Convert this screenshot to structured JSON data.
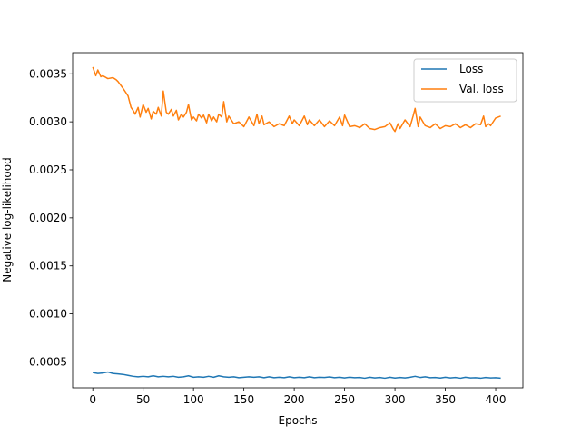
{
  "chart_data": {
    "type": "line",
    "title": "",
    "xlabel": "Epochs",
    "ylabel": "Negative log-likelihood",
    "xlim": [
      -20,
      427
    ],
    "ylim": [
      0.00023,
      0.00372
    ],
    "xticks": [
      0,
      50,
      100,
      150,
      200,
      250,
      300,
      350,
      400
    ],
    "yticks": [
      0.0005,
      0.001,
      0.0015,
      0.002,
      0.0025,
      0.003,
      0.0035
    ],
    "ytick_labels": [
      "0.0005",
      "0.0010",
      "0.0015",
      "0.0020",
      "0.0025",
      "0.0030",
      "0.0035"
    ],
    "grid": false,
    "legend_position": "upper right",
    "series": [
      {
        "name": "Loss",
        "color": "#1f77b4",
        "x": [
          0,
          5,
          10,
          15,
          20,
          25,
          30,
          35,
          40,
          45,
          50,
          55,
          60,
          65,
          70,
          75,
          80,
          85,
          90,
          95,
          100,
          105,
          110,
          115,
          120,
          125,
          130,
          135,
          140,
          145,
          150,
          155,
          160,
          165,
          170,
          175,
          180,
          185,
          190,
          195,
          200,
          205,
          210,
          215,
          220,
          225,
          230,
          235,
          240,
          245,
          250,
          255,
          260,
          265,
          270,
          275,
          280,
          285,
          290,
          295,
          300,
          305,
          310,
          315,
          320,
          325,
          330,
          335,
          340,
          345,
          350,
          355,
          360,
          365,
          370,
          375,
          380,
          385,
          390,
          395,
          400,
          405
        ],
        "y": [
          0.00039,
          0.00038,
          0.000385,
          0.000395,
          0.00038,
          0.000375,
          0.00037,
          0.00036,
          0.00035,
          0.000345,
          0.00035,
          0.000345,
          0.000355,
          0.000345,
          0.00035,
          0.000345,
          0.00035,
          0.00034,
          0.000345,
          0.000355,
          0.00034,
          0.000345,
          0.00034,
          0.00035,
          0.00034,
          0.000355,
          0.000345,
          0.00034,
          0.000345,
          0.000335,
          0.00034,
          0.000345,
          0.00034,
          0.000345,
          0.000335,
          0.000345,
          0.000335,
          0.00034,
          0.000335,
          0.000345,
          0.000335,
          0.00034,
          0.000335,
          0.000345,
          0.000335,
          0.00034,
          0.000338,
          0.000343,
          0.000335,
          0.00034,
          0.000333,
          0.00034,
          0.000335,
          0.000338,
          0.00033,
          0.00034,
          0.000333,
          0.000338,
          0.00033,
          0.00034,
          0.000332,
          0.000338,
          0.000333,
          0.00034,
          0.00035,
          0.000338,
          0.000345,
          0.000335,
          0.000338,
          0.000332,
          0.00034,
          0.000333,
          0.000338,
          0.00033,
          0.00034,
          0.000333,
          0.000335,
          0.00033,
          0.000338,
          0.000333,
          0.000335,
          0.00033
        ]
      },
      {
        "name": "Val. loss",
        "color": "#ff7f0e",
        "x": [
          0,
          3,
          5,
          8,
          10,
          15,
          20,
          23,
          25,
          30,
          35,
          38,
          40,
          42,
          45,
          47,
          50,
          53,
          55,
          58,
          60,
          63,
          65,
          68,
          70,
          73,
          75,
          78,
          80,
          83,
          85,
          88,
          90,
          93,
          95,
          98,
          100,
          103,
          105,
          108,
          110,
          113,
          115,
          118,
          120,
          123,
          125,
          128,
          130,
          133,
          135,
          140,
          145,
          150,
          155,
          160,
          163,
          165,
          168,
          170,
          175,
          180,
          185,
          190,
          195,
          198,
          200,
          205,
          210,
          213,
          215,
          220,
          225,
          230,
          235,
          240,
          245,
          248,
          250,
          255,
          260,
          265,
          270,
          275,
          280,
          285,
          290,
          295,
          298,
          300,
          303,
          305,
          310,
          315,
          318,
          320,
          323,
          325,
          330,
          335,
          340,
          345,
          350,
          355,
          360,
          365,
          370,
          375,
          380,
          385,
          388,
          390,
          393,
          395,
          400,
          405
        ],
        "y": [
          0.00357,
          0.00348,
          0.00354,
          0.00347,
          0.00348,
          0.00345,
          0.00346,
          0.00344,
          0.00342,
          0.00335,
          0.00327,
          0.00315,
          0.00312,
          0.00308,
          0.00315,
          0.00305,
          0.00318,
          0.0031,
          0.00314,
          0.00303,
          0.00311,
          0.00308,
          0.00315,
          0.00306,
          0.00332,
          0.0031,
          0.00308,
          0.00313,
          0.00306,
          0.00312,
          0.00302,
          0.00308,
          0.00305,
          0.0031,
          0.00318,
          0.00302,
          0.00305,
          0.00301,
          0.00308,
          0.00304,
          0.00307,
          0.00299,
          0.00308,
          0.00301,
          0.00305,
          0.003,
          0.00308,
          0.00305,
          0.00321,
          0.003,
          0.00306,
          0.00298,
          0.003,
          0.00295,
          0.00305,
          0.00296,
          0.00308,
          0.00298,
          0.00306,
          0.00297,
          0.003,
          0.00295,
          0.00298,
          0.00296,
          0.00306,
          0.00298,
          0.00302,
          0.00296,
          0.00306,
          0.00297,
          0.00302,
          0.00296,
          0.00302,
          0.00295,
          0.00301,
          0.00296,
          0.00305,
          0.00296,
          0.00307,
          0.00295,
          0.00296,
          0.00294,
          0.00298,
          0.00293,
          0.00292,
          0.00294,
          0.00295,
          0.00299,
          0.00293,
          0.0029,
          0.00298,
          0.00293,
          0.00302,
          0.00295,
          0.00306,
          0.00314,
          0.00295,
          0.00305,
          0.00296,
          0.00294,
          0.00298,
          0.00293,
          0.00296,
          0.00295,
          0.00298,
          0.00294,
          0.00297,
          0.00294,
          0.00298,
          0.00297,
          0.00306,
          0.00295,
          0.00298,
          0.00296,
          0.00304,
          0.00306
        ]
      }
    ]
  }
}
